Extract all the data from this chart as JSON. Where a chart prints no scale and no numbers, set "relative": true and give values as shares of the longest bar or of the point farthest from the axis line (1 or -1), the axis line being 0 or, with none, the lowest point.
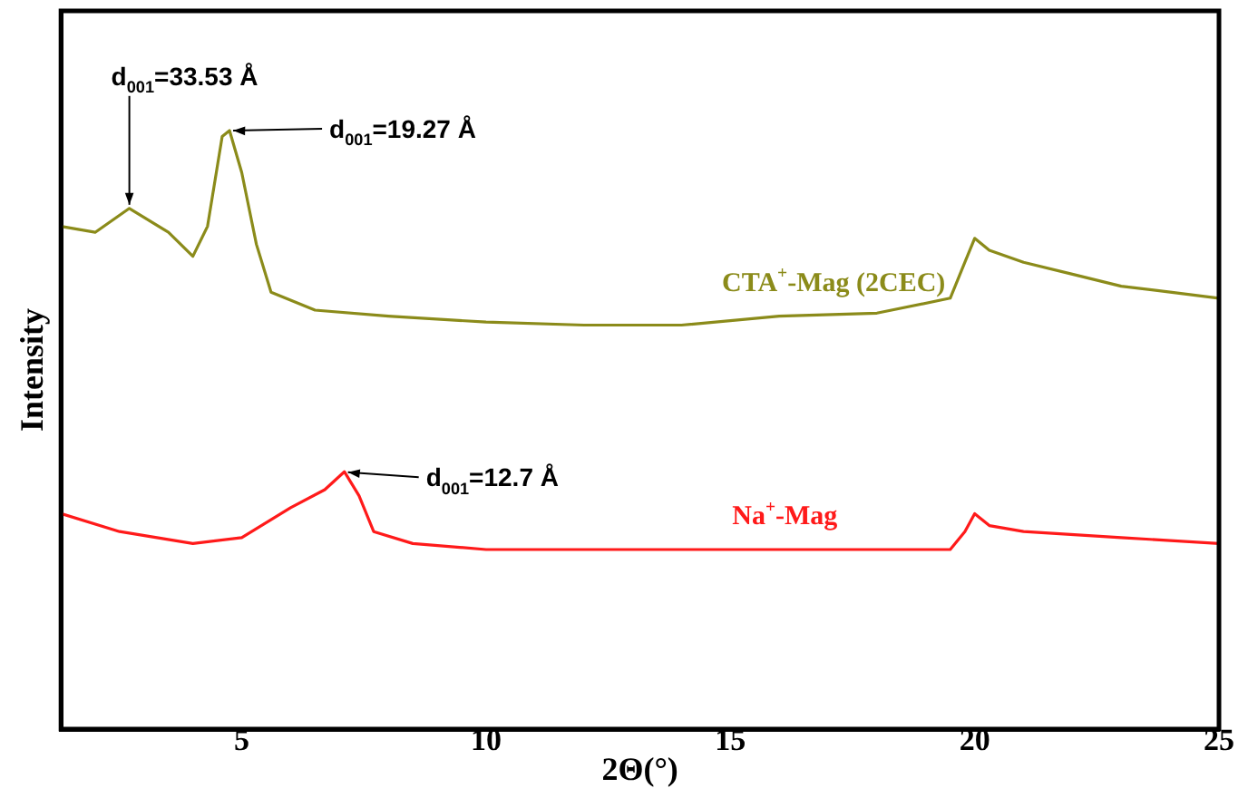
{
  "chart_data": {
    "type": "line",
    "relative": true,
    "xlabel": "2Θ(°)",
    "ylabel": "Intensity",
    "x": [
      1.3,
      2,
      2.7,
      3.5,
      4,
      4.3,
      4.6,
      4.75,
      5,
      5.3,
      5.6,
      6.5,
      8,
      10,
      12,
      14,
      16,
      18,
      19.5,
      19.8,
      20,
      20.3,
      21,
      22,
      23,
      24,
      25
    ],
    "series": [
      {
        "name": "CTA$^{+}$-Mag (2CEC)",
        "color": "#8b8b1a",
        "values": [
          0.84,
          0.83,
          0.87,
          0.83,
          0.79,
          0.84,
          0.99,
          1.0,
          0.93,
          0.81,
          0.73,
          0.7,
          0.69,
          0.68,
          0.675,
          0.675,
          0.69,
          0.695,
          0.72,
          0.78,
          0.82,
          0.8,
          0.78,
          0.76,
          0.74,
          0.73,
          0.72
        ]
      },
      {
        "name": "Na$^{+}$-Mag",
        "color": "#ff1a1a",
        "x": [
          1.3,
          2.5,
          4,
          5,
          6,
          6.7,
          7.1,
          7.4,
          7.7,
          8.5,
          10,
          15,
          19.5,
          19.8,
          20,
          20.3,
          21,
          23,
          25
        ],
        "values": [
          0.36,
          0.33,
          0.31,
          0.32,
          0.37,
          0.4,
          0.43,
          0.39,
          0.33,
          0.31,
          0.3,
          0.3,
          0.3,
          0.33,
          0.36,
          0.34,
          0.33,
          0.32,
          0.31
        ]
      }
    ],
    "annotations": [
      {
        "text": "d$_{001}$=33.53 Å",
        "x": 2.7,
        "y": 0.87
      },
      {
        "text": "d$_{001}$=19.27 Å",
        "x": 4.75,
        "y": 1.0
      },
      {
        "text": "d$_{001}$=12.7 Å",
        "x": 7.1,
        "y": 0.43
      }
    ],
    "xlim": [
      1.3,
      25
    ],
    "xticks": [
      5,
      10,
      15,
      20,
      25
    ],
    "grid": false,
    "legend": false,
    "marker": "none",
    "line_style": "solid"
  }
}
